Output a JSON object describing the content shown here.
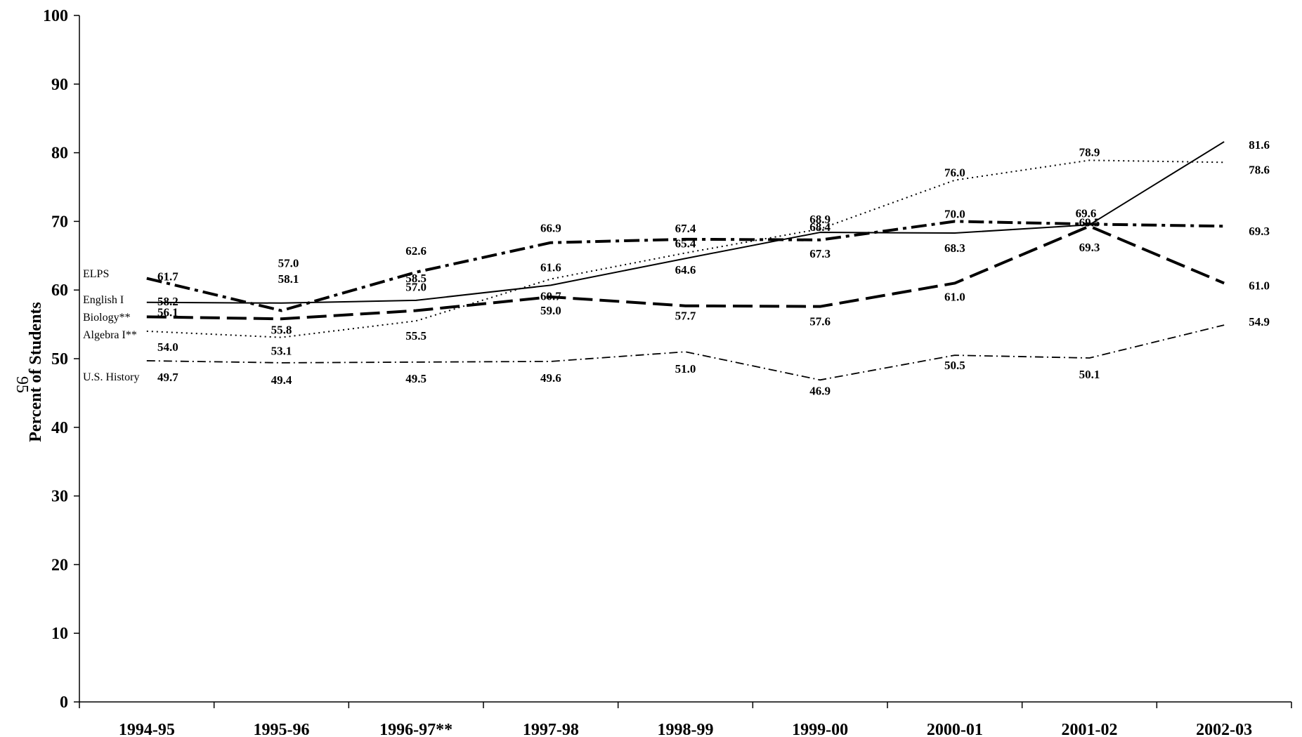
{
  "page_number": "95",
  "chart_data": {
    "type": "line",
    "title": "",
    "xlabel": "",
    "ylabel": "Percent of Students",
    "ylim": [
      0,
      100
    ],
    "yticks": [
      "0",
      "10",
      "20",
      "30",
      "40",
      "50",
      "60",
      "70",
      "80",
      "90",
      "100"
    ],
    "categories": [
      "1994-95",
      "1995-96",
      "1996-97**",
      "1997-98",
      "1998-99",
      "1999-00",
      "2000-01",
      "2001-02",
      "2002-03"
    ],
    "grid": false,
    "legend": "inline labels at left of lines",
    "series": [
      {
        "name": "ELPS",
        "style": "dash-dot-heavy",
        "values": [
          61.7,
          57.0,
          62.6,
          66.9,
          67.4,
          67.3,
          70.0,
          69.6,
          69.3
        ],
        "labels": [
          "61.7",
          "57.0",
          "62.6",
          "66.9",
          "67.4",
          "67.3",
          "70.0",
          "69.6",
          "69.3"
        ]
      },
      {
        "name": "English I",
        "style": "solid",
        "values": [
          58.2,
          58.1,
          58.5,
          60.7,
          64.6,
          68.4,
          68.3,
          69.5,
          81.6
        ],
        "labels": [
          "58.2",
          "58.1",
          "58.5",
          "60.7",
          "64.6",
          "68.4",
          "68.3",
          "69.5",
          "81.6"
        ]
      },
      {
        "name": "Biology**",
        "style": "long-dash",
        "values": [
          56.1,
          55.8,
          57.0,
          59.0,
          57.7,
          57.6,
          61.0,
          69.3,
          61.0
        ],
        "labels": [
          "56.1",
          "55.8",
          "57.0",
          "59.0",
          "57.7",
          "57.6",
          "61.0",
          "69.3",
          "61.0"
        ]
      },
      {
        "name": "Algebra I**",
        "style": "dotted",
        "values": [
          54.0,
          53.1,
          55.5,
          61.6,
          65.4,
          68.9,
          76.0,
          78.9,
          78.6
        ],
        "labels": [
          "54.0",
          "53.1",
          "55.5",
          "61.6",
          "65.4",
          "68.9",
          "76.0",
          "78.9",
          "78.6"
        ]
      },
      {
        "name": "U.S. History",
        "style": "dash-dot-thin",
        "values": [
          49.7,
          49.4,
          49.5,
          49.6,
          51.0,
          46.9,
          50.5,
          50.1,
          54.9
        ],
        "labels": [
          "49.7",
          "49.4",
          "49.5",
          "49.6",
          "51.0",
          "46.9",
          "50.5",
          "50.1",
          "54.9"
        ]
      }
    ]
  }
}
